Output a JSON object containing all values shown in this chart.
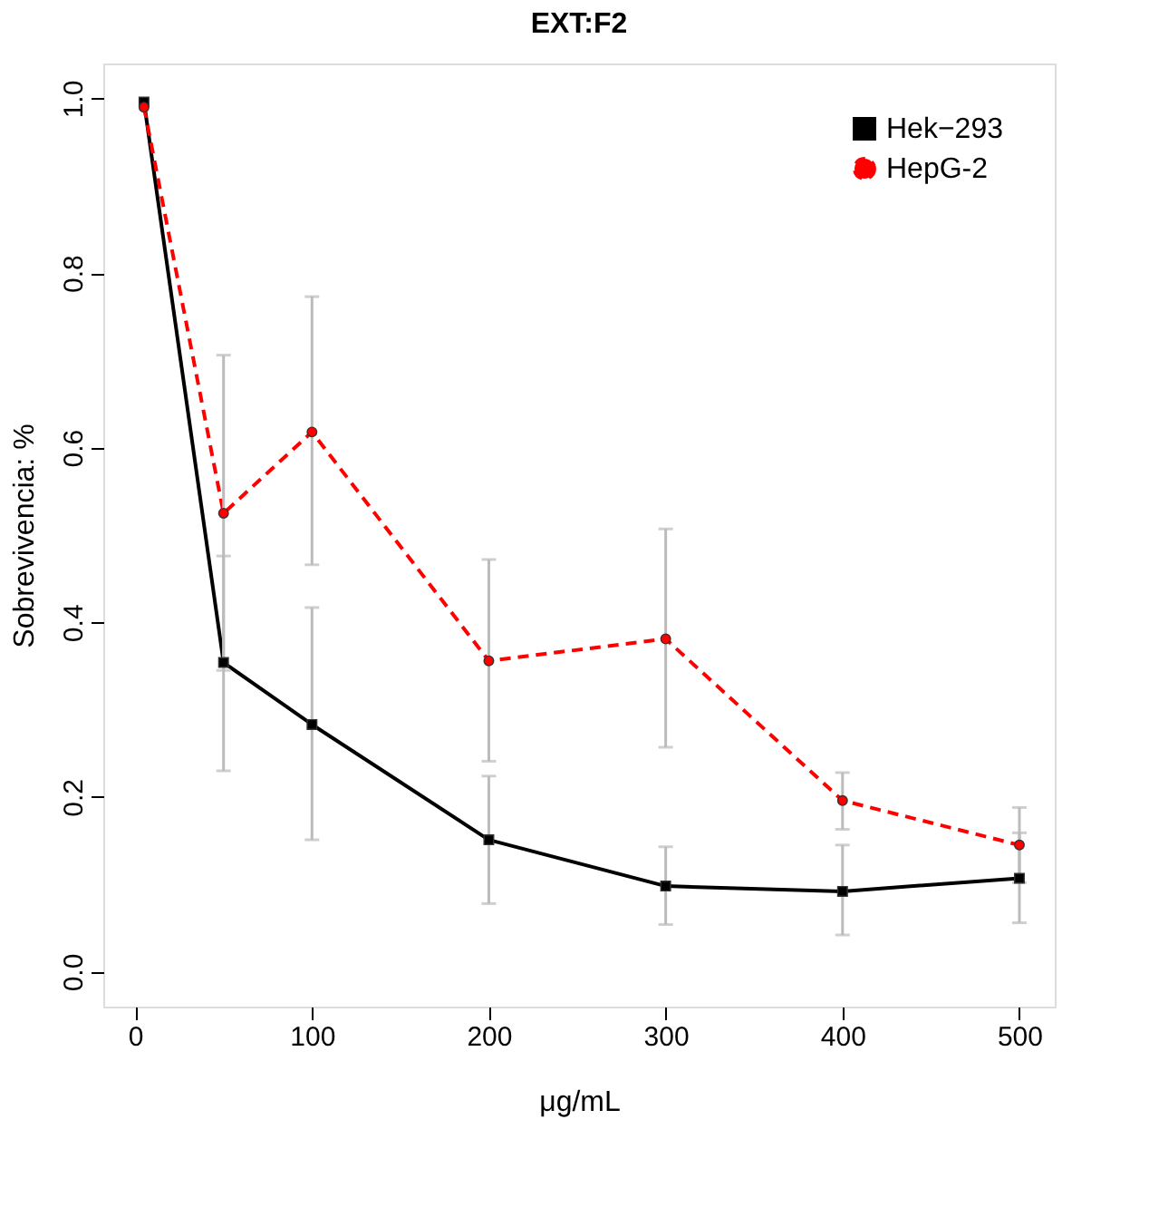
{
  "chart_data": {
    "type": "line",
    "title": "EXT:F2",
    "xlabel": "μg/mL",
    "ylabel": "Sobrevivencia: %",
    "x": [
      5,
      50,
      100,
      200,
      300,
      400,
      500
    ],
    "xlim": [
      -18,
      520
    ],
    "xticks": [
      0,
      100,
      200,
      300,
      400,
      500
    ],
    "ylim": [
      -0.04,
      1.04
    ],
    "yticks": [
      {
        "value": 0,
        "label": "0.0"
      },
      0.2,
      0.4,
      0.6,
      0.8,
      {
        "value": 1,
        "label": "1.0"
      }
    ],
    "grid": false,
    "legend": "top right",
    "series": [
      {
        "name": "Hek−293",
        "color": "#000000",
        "marker": "square",
        "line_style": "solid",
        "values": [
          0.996,
          0.354,
          0.283,
          0.151,
          0.098,
          0.092,
          0.107
        ],
        "errors": [
          null,
          [
            0.23,
            0.476
          ],
          [
            0.151,
            0.417
          ],
          [
            0.078,
            0.224
          ],
          [
            0.054,
            0.143
          ],
          [
            0.042,
            0.145
          ],
          [
            0.056,
            0.159
          ]
        ]
      },
      {
        "name": "HepG-2",
        "color": "#ff0000",
        "marker": "circle",
        "line_style": "dashed",
        "values": [
          0.99,
          0.525,
          0.618,
          0.356,
          0.381,
          0.196,
          0.145
        ],
        "errors": [
          null,
          [
            0.345,
            0.706
          ],
          [
            0.466,
            0.773
          ],
          [
            0.241,
            0.472
          ],
          [
            0.257,
            0.507
          ],
          [
            0.163,
            0.228
          ],
          [
            0.102,
            0.188
          ]
        ]
      }
    ]
  }
}
